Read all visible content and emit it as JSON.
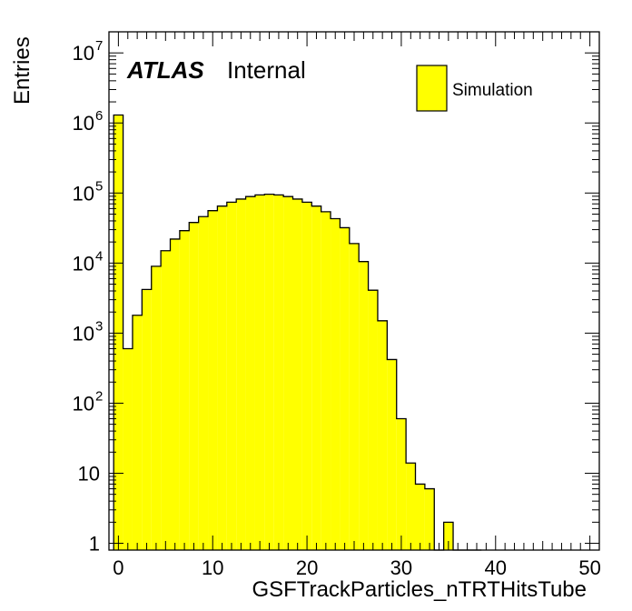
{
  "chart_data": {
    "type": "bar",
    "title": "",
    "xlabel": "GSFTrackParticles_nTRTHitsTube",
    "ylabel": "Entries",
    "atlas_label": "ATLAS",
    "status_label": "Internal",
    "legend": [
      {
        "name": "Simulation",
        "color": "#ffff00"
      }
    ],
    "legend_position": "top-right",
    "log_y": true,
    "xlim": [
      -1,
      51
    ],
    "ylim": [
      0.8,
      20000000
    ],
    "x_ticks": [
      "0",
      "10",
      "20",
      "30",
      "40",
      "50"
    ],
    "y_ticks": [
      {
        "base": "1",
        "exp": ""
      },
      {
        "base": "10",
        "exp": ""
      },
      {
        "base": "10",
        "exp": "2"
      },
      {
        "base": "10",
        "exp": "3"
      },
      {
        "base": "10",
        "exp": "4"
      },
      {
        "base": "10",
        "exp": "5"
      },
      {
        "base": "10",
        "exp": "6"
      },
      {
        "base": "10",
        "exp": "7"
      }
    ],
    "fill_color": "#ffff00",
    "line_color": "#000000",
    "bin_width": 1,
    "bins": [
      -0.5,
      0.5,
      1.5,
      2.5,
      3.5,
      4.5,
      5.5,
      6.5,
      7.5,
      8.5,
      9.5,
      10.5,
      11.5,
      12.5,
      13.5,
      14.5,
      15.5,
      16.5,
      17.5,
      18.5,
      19.5,
      20.5,
      21.5,
      22.5,
      23.5,
      24.5,
      25.5,
      26.5,
      27.5,
      28.5,
      29.5,
      30.5,
      31.5,
      32.5,
      33.5,
      34.5,
      35.5,
      36.5,
      37.5
    ],
    "values": [
      1300000,
      600,
      1800,
      4200,
      9000,
      15000,
      22000,
      29000,
      38000,
      46000,
      56000,
      65000,
      74000,
      82000,
      89000,
      94000,
      96000,
      94000,
      89000,
      82000,
      74000,
      65000,
      54000,
      43000,
      32000,
      19000,
      10500,
      4100,
      1500,
      420,
      60,
      14,
      7,
      6,
      0.5,
      2,
      0.7,
      0.3,
      0
    ]
  }
}
